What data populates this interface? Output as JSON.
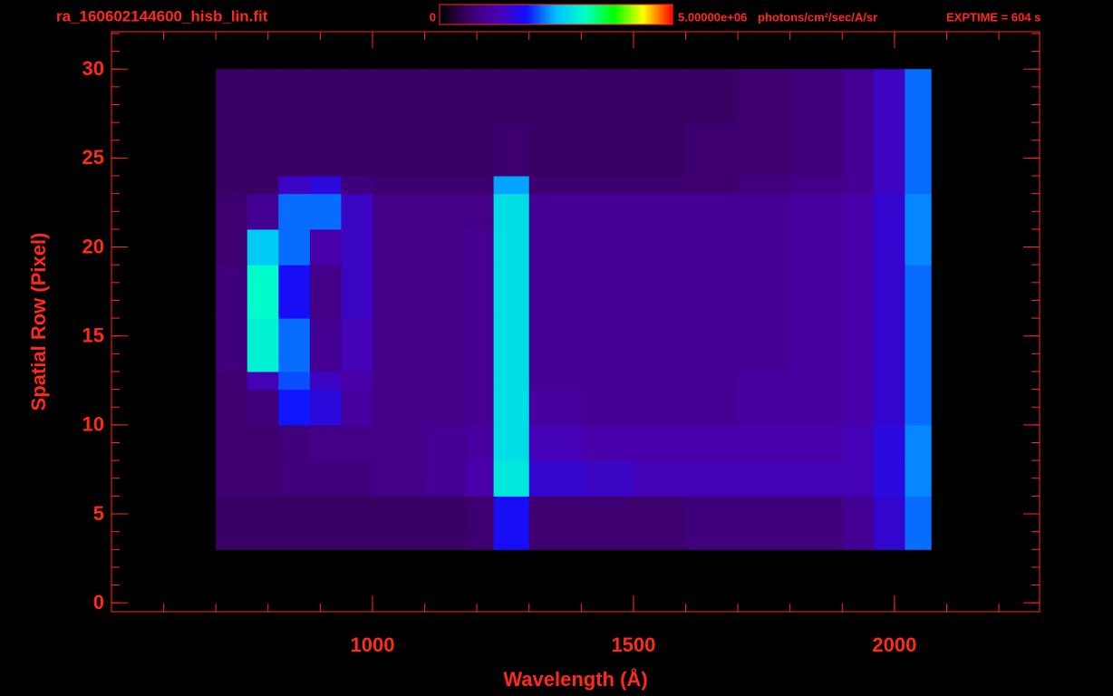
{
  "chart_data": {
    "type": "heatmap",
    "title": "ra_160602144600_hisb_lin.fit",
    "exposure": "EXPTIME = 604 s",
    "x_label": "Wavelength (Å)",
    "y_label": "Spatial Row (Pixel)",
    "xlim": [
      500,
      2278
    ],
    "ylim": [
      -0.5,
      32.1
    ],
    "xticks": [
      1000,
      1500,
      2000
    ],
    "yticks": [
      0,
      5,
      10,
      15,
      20,
      25,
      30
    ],
    "x_minor_step": 100,
    "y_minor_step": 1,
    "colorbar": {
      "lim": [
        0,
        5000000
      ],
      "ticks": [
        0,
        {
          "value": 5000000,
          "label": "5.00000e+06"
        }
      ],
      "label": "photons/cm²/sec/A/sr"
    },
    "colormap": [
      "#000000",
      "#3c0068",
      "#4a00b0",
      "#1010ff",
      "#00c0ff",
      "#00ffc8",
      "#00ff00",
      "#ffff00",
      "#ff0000"
    ],
    "axis_color": "#ff2a1a",
    "x_edges": [
      700,
      760,
      820,
      880,
      940,
      1000,
      1100,
      1180,
      1232,
      1300,
      1400,
      1500,
      1600,
      1700,
      1800,
      1900,
      1960,
      2020,
      2070
    ],
    "y_edges": [
      3,
      6,
      8,
      10,
      12,
      13,
      16,
      19,
      21,
      23,
      24,
      27,
      30
    ],
    "values": [
      [
        600000.0,
        600000.0,
        600000.0,
        600000.0,
        600000.0,
        600000.0,
        600000.0,
        700000.0,
        1800000.0,
        700000.0,
        700000.0,
        700000.0,
        800000.0,
        800000.0,
        800000.0,
        1000000.0,
        1500000.0,
        2200000.0
      ],
      [
        700000.0,
        700000.0,
        800000.0,
        800000.0,
        800000.0,
        900000.0,
        1000000.0,
        1200000.0,
        2900000.0,
        1500000.0,
        1400000.0,
        1300000.0,
        1300000.0,
        1300000.0,
        1300000.0,
        1300000.0,
        1600000.0,
        2300000.0
      ],
      [
        700000.0,
        700000.0,
        800000.0,
        900000.0,
        900000.0,
        900000.0,
        1000000.0,
        1100000.0,
        2800000.0,
        1300000.0,
        1200000.0,
        1200000.0,
        1200000.0,
        1200000.0,
        1200000.0,
        1300000.0,
        1600000.0,
        2300000.0
      ],
      [
        700000.0,
        800000.0,
        1900000.0,
        1600000.0,
        1100000.0,
        900000.0,
        900000.0,
        1000000.0,
        2800000.0,
        1100000.0,
        1000000.0,
        1000000.0,
        1000000.0,
        1100000.0,
        1100000.0,
        1200000.0,
        1500000.0,
        2200000.0
      ],
      [
        700000.0,
        1300000.0,
        2100000.0,
        1400000.0,
        1200000.0,
        900000.0,
        900000.0,
        1000000.0,
        2800000.0,
        1000000.0,
        1000000.0,
        1000000.0,
        1000000.0,
        1100000.0,
        1100000.0,
        1200000.0,
        1500000.0,
        2200000.0
      ],
      [
        800000.0,
        3000000.0,
        2200000.0,
        1000000.0,
        1300000.0,
        900000.0,
        900000.0,
        1000000.0,
        2800000.0,
        1000000.0,
        1000000.0,
        1000000.0,
        1000000.0,
        1000000.0,
        1100000.0,
        1200000.0,
        1500000.0,
        2200000.0
      ],
      [
        800000.0,
        3100000.0,
        1800000.0,
        900000.0,
        1400000.0,
        900000.0,
        900000.0,
        1000000.0,
        2800000.0,
        1000000.0,
        1000000.0,
        1000000.0,
        1000000.0,
        1000000.0,
        1100000.0,
        1200000.0,
        1500000.0,
        2200000.0
      ],
      [
        700000.0,
        2600000.0,
        2200000.0,
        1200000.0,
        1400000.0,
        900000.0,
        900000.0,
        1000000.0,
        2800000.0,
        1000000.0,
        1000000.0,
        1000000.0,
        1000000.0,
        1000000.0,
        1100000.0,
        1200000.0,
        1500000.0,
        2300000.0
      ],
      [
        700000.0,
        1000000.0,
        2200000.0,
        2200000.0,
        1400000.0,
        900000.0,
        900000.0,
        900000.0,
        2800000.0,
        1000000.0,
        1000000.0,
        1000000.0,
        1000000.0,
        1000000.0,
        1100000.0,
        1200000.0,
        1500000.0,
        2300000.0
      ],
      [
        600000.0,
        600000.0,
        1400000.0,
        1600000.0,
        800000.0,
        700000.0,
        700000.0,
        700000.0,
        2400000.0,
        700000.0,
        700000.0,
        700000.0,
        700000.0,
        800000.0,
        900000.0,
        1000000.0,
        1400000.0,
        2200000.0
      ],
      [
        600000.0,
        600000.0,
        600000.0,
        600000.0,
        600000.0,
        600000.0,
        600000.0,
        600000.0,
        700000.0,
        600000.0,
        600000.0,
        600000.0,
        700000.0,
        700000.0,
        800000.0,
        1000000.0,
        1400000.0,
        2200000.0
      ],
      [
        600000.0,
        600000.0,
        600000.0,
        600000.0,
        600000.0,
        600000.0,
        600000.0,
        600000.0,
        600000.0,
        600000.0,
        600000.0,
        600000.0,
        600000.0,
        700000.0,
        800000.0,
        1000000.0,
        1400000.0,
        2200000.0
      ]
    ]
  }
}
